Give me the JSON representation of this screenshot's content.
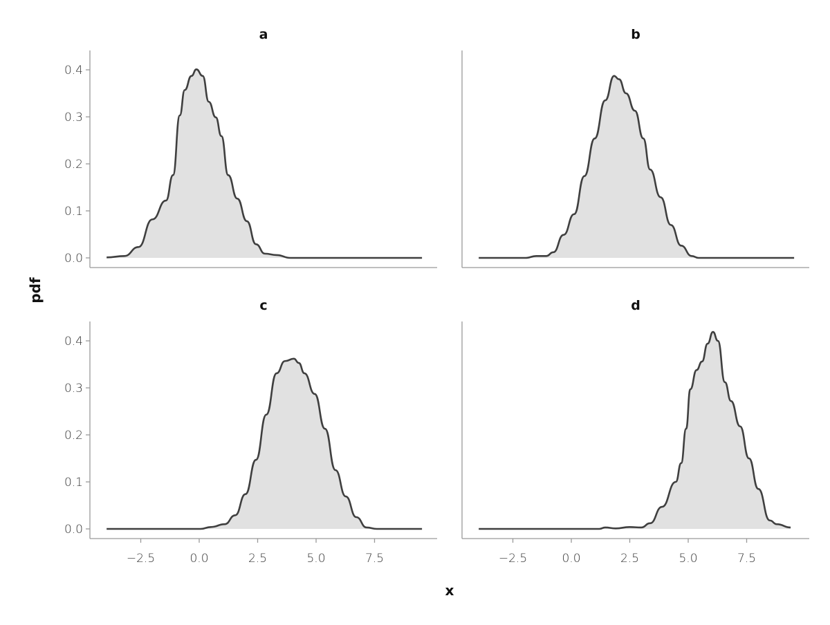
{
  "chart_data": {
    "type": "area",
    "facet_layout": "2x2",
    "xlabel": "x",
    "ylabel": "pdf",
    "xlim": [
      -3.96,
      9.53
    ],
    "ylim": [
      0,
      0.42
    ],
    "xticks": [
      -2.5,
      0.0,
      2.5,
      5.0,
      7.5
    ],
    "xtick_labels": [
      "−2.5",
      "0.0",
      "2.5",
      "5.0",
      "7.5"
    ],
    "yticks": [
      0.0,
      0.1,
      0.2,
      0.3,
      0.4
    ],
    "ytick_labels": [
      "0.0",
      "0.1",
      "0.2",
      "0.3",
      "0.4"
    ],
    "grid": false,
    "fill_color": "#e1e1e1",
    "line_color": "#3f3f3f",
    "panels": [
      {
        "title": "a",
        "x": [
          -3.96,
          -3.2,
          -2.6,
          -2.0,
          -1.42,
          -1.12,
          -0.83,
          -0.62,
          -0.33,
          -0.12,
          0.15,
          0.41,
          0.71,
          0.95,
          1.24,
          1.63,
          2.04,
          2.43,
          2.81,
          3.31,
          3.9,
          9.53
        ],
        "y": [
          0.001,
          0.004,
          0.023,
          0.082,
          0.122,
          0.176,
          0.303,
          0.357,
          0.387,
          0.401,
          0.387,
          0.332,
          0.299,
          0.259,
          0.176,
          0.126,
          0.078,
          0.029,
          0.009,
          0.006,
          0.0,
          0.0
        ]
      },
      {
        "title": "b",
        "x": [
          -3.96,
          -1.95,
          -1.5,
          -1.07,
          -0.77,
          -0.33,
          0.12,
          0.56,
          1.0,
          1.45,
          1.83,
          2.04,
          2.34,
          2.72,
          3.08,
          3.37,
          3.82,
          4.26,
          4.7,
          5.15,
          5.44,
          9.53
        ],
        "y": [
          0.0,
          0.0,
          0.004,
          0.004,
          0.012,
          0.049,
          0.093,
          0.174,
          0.254,
          0.335,
          0.387,
          0.38,
          0.35,
          0.313,
          0.254,
          0.188,
          0.129,
          0.07,
          0.026,
          0.004,
          0.0,
          0.0
        ]
      },
      {
        "title": "c",
        "x": [
          -3.96,
          0.06,
          0.5,
          1.09,
          1.54,
          1.98,
          2.43,
          2.87,
          3.31,
          3.67,
          4.05,
          4.26,
          4.5,
          4.94,
          5.38,
          5.83,
          6.27,
          6.72,
          7.16,
          7.6,
          9.53
        ],
        "y": [
          0.0,
          0.0,
          0.004,
          0.01,
          0.029,
          0.074,
          0.147,
          0.243,
          0.331,
          0.357,
          0.362,
          0.353,
          0.331,
          0.287,
          0.213,
          0.125,
          0.069,
          0.025,
          0.003,
          0.0,
          0.0
        ]
      },
      {
        "title": "d",
        "x": [
          -3.96,
          1.2,
          1.45,
          1.9,
          2.49,
          2.99,
          3.37,
          3.88,
          4.47,
          4.7,
          4.91,
          5.09,
          5.36,
          5.59,
          5.83,
          6.06,
          6.27,
          6.57,
          6.83,
          7.22,
          7.6,
          8.0,
          8.49,
          8.79,
          9.38
        ],
        "y": [
          0.0,
          0.0,
          0.003,
          0.001,
          0.004,
          0.003,
          0.012,
          0.047,
          0.1,
          0.14,
          0.213,
          0.297,
          0.338,
          0.356,
          0.394,
          0.419,
          0.4,
          0.312,
          0.272,
          0.218,
          0.15,
          0.085,
          0.018,
          0.01,
          0.003
        ]
      }
    ]
  }
}
